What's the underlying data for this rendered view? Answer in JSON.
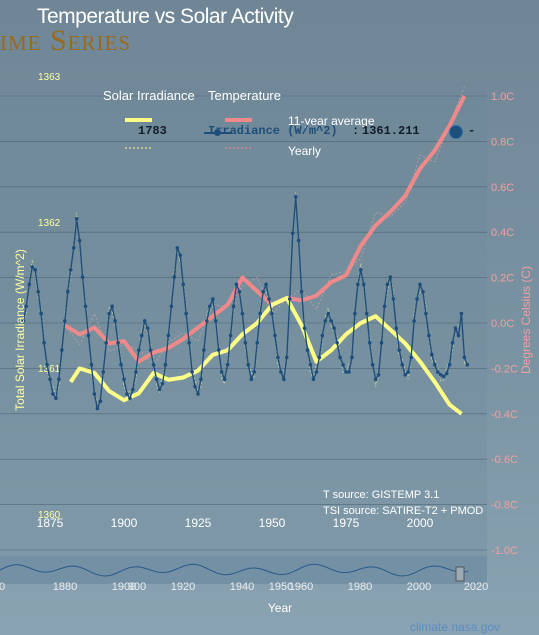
{
  "header": {
    "title": "Temperature vs Solar Activity",
    "section_title": "ime Series"
  },
  "legend": {
    "irradiance_label": "Solar Irradiance",
    "temperature_label": "Temperature",
    "average_label": "11-year average",
    "yearly_label": "Yearly"
  },
  "readout": {
    "year": "1783",
    "series_label": "Irradiance (W/m^2)",
    "separator": ":",
    "value": "1361.211",
    "dash": "-"
  },
  "sources": {
    "temperature": "T source: GISTEMP 3.1",
    "tsi": "TSI source: SATIRE-T2 + PMOD"
  },
  "credit": "climate.nasa.gov",
  "colors": {
    "irradiance": "#ffff88",
    "temperature": "#f08a8a",
    "irradiance_line": "#1d4e7c",
    "temperature_axis": "#f0a0a0",
    "irradiance_axis": "#ffffa0"
  },
  "chart_data": {
    "type": "line",
    "title": "Temperature vs Solar Activity",
    "x_range": [
      1866,
      2016
    ],
    "x_ticks": [
      1875,
      1900,
      1925,
      1950,
      1975,
      2000
    ],
    "xlabel": "",
    "left_axis": {
      "label": "Total Solar Irradiance (W/m^2)",
      "range": [
        1360.0,
        1363.0
      ],
      "ticks": [
        "1363",
        "1362",
        "1361",
        "1360"
      ],
      "tick_values": [
        1363,
        1362,
        1361,
        1360
      ]
    },
    "right_axis": {
      "label": "Degrees Celsius (C)",
      "range": [
        -1.0,
        1.0
      ],
      "ticks": [
        "1.0C",
        "0.8C",
        "0.6C",
        "0.4C",
        "0.2C",
        "0.0C",
        "-0.2C",
        "-0.4C",
        "-0.6C",
        "-0.8C",
        "-1.0C"
      ],
      "tick_values": [
        1.0,
        0.8,
        0.6,
        0.4,
        0.2,
        0.0,
        -0.2,
        -0.4,
        -0.6,
        -0.8,
        -1.0
      ]
    },
    "series": [
      {
        "name": "Solar Irradiance",
        "axis": "left",
        "x": [
          1866,
          1867,
          1868,
          1869,
          1870,
          1871,
          1872,
          1873,
          1874,
          1875,
          1876,
          1877,
          1878,
          1879,
          1880,
          1881,
          1882,
          1883,
          1884,
          1885,
          1886,
          1887,
          1888,
          1889,
          1890,
          1891,
          1892,
          1893,
          1894,
          1895,
          1896,
          1897,
          1898,
          1899,
          1900,
          1901,
          1902,
          1903,
          1904,
          1905,
          1906,
          1907,
          1908,
          1909,
          1910,
          1911,
          1912,
          1913,
          1914,
          1915,
          1916,
          1917,
          1918,
          1919,
          1920,
          1921,
          1922,
          1923,
          1924,
          1925,
          1926,
          1927,
          1928,
          1929,
          1930,
          1931,
          1932,
          1933,
          1934,
          1935,
          1936,
          1937,
          1938,
          1939,
          1940,
          1941,
          1942,
          1943,
          1944,
          1945,
          1946,
          1947,
          1948,
          1949,
          1950,
          1951,
          1952,
          1953,
          1954,
          1955,
          1956,
          1957,
          1958,
          1959,
          1960,
          1961,
          1962,
          1963,
          1964,
          1965,
          1966,
          1967,
          1968,
          1969,
          1970,
          1971,
          1972,
          1973,
          1974,
          1975,
          1976,
          1977,
          1978,
          1979,
          1980,
          1981,
          1982,
          1983,
          1984,
          1985,
          1986,
          1987,
          1988,
          1989,
          1990,
          1991,
          1992,
          1993,
          1994,
          1995,
          1996,
          1997,
          1998,
          1999,
          2000,
          2001,
          2002,
          2003,
          2004,
          2005,
          2006,
          2007,
          2008,
          2009,
          2010,
          2011,
          2012,
          2013,
          2014,
          2015,
          2016
        ],
        "values": [
          1361.35,
          1361.45,
          1361.6,
          1361.72,
          1361.7,
          1361.55,
          1361.4,
          1361.2,
          1361.05,
          1360.95,
          1360.85,
          1360.82,
          1360.95,
          1361.15,
          1361.35,
          1361.55,
          1361.7,
          1361.85,
          1362.05,
          1361.9,
          1361.65,
          1361.45,
          1361.25,
          1361.05,
          1360.85,
          1360.75,
          1360.8,
          1361.0,
          1361.2,
          1361.4,
          1361.45,
          1361.35,
          1361.2,
          1361.05,
          1360.95,
          1360.85,
          1360.82,
          1360.88,
          1361.0,
          1361.15,
          1361.25,
          1361.35,
          1361.3,
          1361.15,
          1361.05,
          1360.95,
          1360.88,
          1360.92,
          1361.05,
          1361.25,
          1361.45,
          1361.65,
          1361.85,
          1361.8,
          1361.6,
          1361.4,
          1361.2,
          1361.0,
          1360.9,
          1360.85,
          1360.95,
          1361.15,
          1361.35,
          1361.45,
          1361.5,
          1361.35,
          1361.15,
          1361.0,
          1360.95,
          1361.05,
          1361.25,
          1361.45,
          1361.6,
          1361.55,
          1361.4,
          1361.2,
          1361.05,
          1360.95,
          1361.0,
          1361.2,
          1361.4,
          1361.55,
          1361.6,
          1361.5,
          1361.4,
          1361.25,
          1361.1,
          1361.0,
          1360.95,
          1361.1,
          1361.5,
          1361.95,
          1362.2,
          1361.9,
          1361.55,
          1361.3,
          1361.15,
          1361.05,
          1360.95,
          1361.0,
          1361.1,
          1361.25,
          1361.35,
          1361.4,
          1361.35,
          1361.3,
          1361.2,
          1361.1,
          1361.05,
          1361.0,
          1361.0,
          1361.1,
          1361.4,
          1361.6,
          1361.7,
          1361.6,
          1361.4,
          1361.2,
          1361.05,
          1360.95,
          1360.98,
          1361.2,
          1361.45,
          1361.6,
          1361.65,
          1361.5,
          1361.3,
          1361.15,
          1361.05,
          1360.98,
          1361.0,
          1361.1,
          1361.35,
          1361.5,
          1361.6,
          1361.55,
          1361.4,
          1361.25,
          1361.12,
          1361.05,
          1361.0,
          1360.98,
          1360.97,
          1360.99,
          1361.05,
          1361.2,
          1361.3,
          1361.25,
          1361.4,
          1361.1,
          1361.05
        ]
      },
      {
        "name": "Temperature",
        "axis": "right",
        "x": [
          1880,
          1885,
          1890,
          1895,
          1900,
          1905,
          1910,
          1915,
          1920,
          1925,
          1930,
          1935,
          1940,
          1945,
          1950,
          1955,
          1960,
          1965,
          1970,
          1975,
          1980,
          1985,
          1990,
          1995,
          2000,
          2005,
          2010,
          2015
        ],
        "values": [
          -0.01,
          -0.05,
          -0.02,
          -0.09,
          -0.08,
          -0.17,
          -0.13,
          -0.11,
          -0.07,
          -0.02,
          0.03,
          0.08,
          0.2,
          0.14,
          0.08,
          0.11,
          0.1,
          0.12,
          0.18,
          0.21,
          0.34,
          0.43,
          0.49,
          0.56,
          0.68,
          0.76,
          0.87,
          1.0
        ]
      },
      {
        "name": "11-year average",
        "axis": "right",
        "x": [
          1882,
          1885,
          1890,
          1895,
          1900,
          1905,
          1910,
          1915,
          1920,
          1925,
          1930,
          1935,
          1940,
          1945,
          1950,
          1955,
          1960,
          1965,
          1970,
          1975,
          1980,
          1985,
          1990,
          1995,
          2000,
          2005,
          2010,
          2014
        ],
        "values": [
          -0.26,
          -0.2,
          -0.22,
          -0.3,
          -0.34,
          -0.31,
          -0.22,
          -0.25,
          -0.24,
          -0.21,
          -0.14,
          -0.12,
          -0.05,
          0.0,
          0.08,
          0.11,
          -0.01,
          -0.17,
          -0.12,
          -0.05,
          0.0,
          0.03,
          -0.03,
          -0.09,
          -0.17,
          -0.26,
          -0.36,
          -0.4
        ]
      }
    ],
    "footer_ticks": [
      "1880",
      "1900",
      "1920",
      "1940",
      "1960",
      "1980",
      "2000",
      "2020"
    ],
    "footer_extra_labels": [
      "0",
      "900",
      "1950"
    ],
    "footer_axis_label": "Year"
  }
}
